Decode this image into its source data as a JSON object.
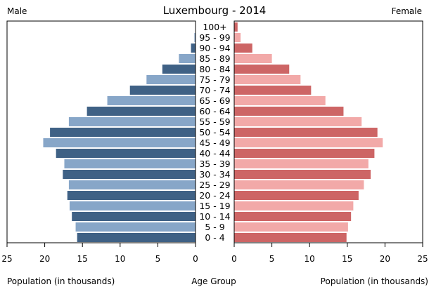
{
  "chart_data": {
    "type": "bar",
    "title": "Luxembourg - 2014",
    "left_header": "Male",
    "right_header": "Female",
    "xlabel_left": "Population (in thousands)",
    "xlabel_center": "Age Group",
    "xlabel_right": "Population (in thousands)",
    "xlim": [
      0,
      25
    ],
    "xticks": [
      0,
      5,
      10,
      15,
      20,
      25
    ],
    "categories": [
      "0 - 4",
      "5 - 9",
      "10 - 14",
      "15 - 19",
      "20 - 24",
      "25 - 29",
      "30 - 34",
      "35 - 39",
      "40 - 44",
      "45 - 49",
      "50 - 54",
      "55 - 59",
      "60 - 64",
      "65 - 69",
      "70 - 74",
      "75 - 79",
      "80 - 84",
      "85 - 89",
      "90 - 94",
      "95 - 99",
      "100+"
    ],
    "series": [
      {
        "name": "Male",
        "values": [
          15.7,
          15.9,
          16.4,
          16.7,
          17.0,
          16.8,
          17.6,
          17.4,
          18.5,
          20.2,
          19.3,
          16.8,
          14.4,
          11.7,
          8.7,
          6.5,
          4.4,
          2.2,
          0.6,
          0.15,
          0.02
        ]
      },
      {
        "name": "Female",
        "values": [
          14.9,
          15.1,
          15.5,
          15.8,
          16.5,
          17.2,
          18.1,
          17.8,
          18.6,
          19.7,
          19.0,
          16.9,
          14.5,
          12.1,
          10.2,
          8.8,
          7.3,
          5.0,
          2.4,
          0.85,
          0.45
        ]
      }
    ],
    "colors": {
      "male_dark": "#3f6185",
      "male_light": "#87a6c8",
      "female_dark": "#cd6565",
      "female_light": "#f2a9a8"
    },
    "grid": false,
    "legend": "none"
  }
}
